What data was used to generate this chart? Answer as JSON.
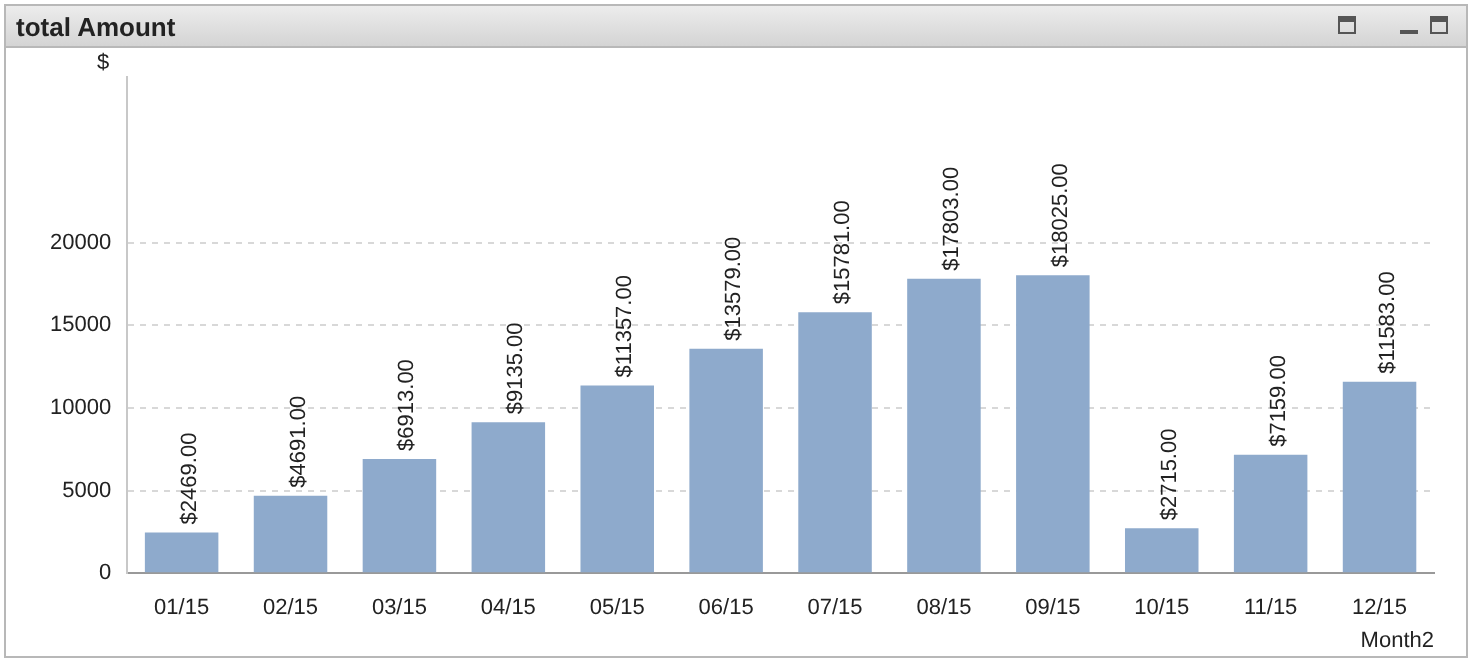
{
  "chart_data": {
    "type": "bar",
    "title": "total Amount",
    "ylabel": "$",
    "xlabel": "Month2",
    "categories": [
      "01/15",
      "02/15",
      "03/15",
      "04/15",
      "05/15",
      "06/15",
      "07/15",
      "08/15",
      "09/15",
      "10/15",
      "11/15",
      "12/15"
    ],
    "values": [
      2469,
      4691,
      6913,
      9135,
      11357,
      13579,
      15781,
      17803,
      18025,
      2715,
      7159,
      11583
    ],
    "value_labels": [
      "$2469.00",
      "$4691.00",
      "$6913.00",
      "$9135.00",
      "$11357.00",
      "$13579.00",
      "$15781.00",
      "$17803.00",
      "$18025.00",
      "$2715.00",
      "$7159.00",
      "$11583.00"
    ],
    "color": "#8eaacc",
    "ylim": [
      0,
      30000
    ],
    "yticks": [
      0,
      5000,
      10000,
      15000,
      20000
    ],
    "grid": "y",
    "legend": false
  }
}
